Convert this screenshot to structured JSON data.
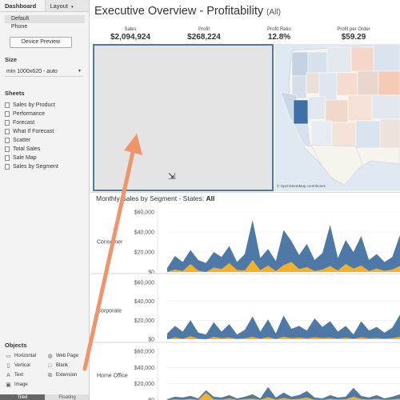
{
  "left_pane": {
    "tabs": [
      "Dashboard",
      "Layout"
    ],
    "devices": [
      "Default",
      "Phone"
    ],
    "device_preview_label": "Device Preview",
    "size_title": "Size",
    "size_value": "min 1000x620 - auto",
    "sheets_title": "Sheets",
    "sheets": [
      "Sales by Product",
      "Performance",
      "Forecast",
      "What If Forecast",
      "Scatter",
      "Total Sales",
      "Sale Map",
      "Sales by Segment"
    ],
    "objects_title": "Objects",
    "objects": [
      {
        "label": "Horizontal",
        "icon": "horizontal-icon"
      },
      {
        "label": "Web Page",
        "icon": "globe-icon"
      },
      {
        "label": "Vertical",
        "icon": "vertical-icon"
      },
      {
        "label": "Blank",
        "icon": "blank-icon"
      },
      {
        "label": "Text",
        "icon": "text-icon"
      },
      {
        "label": "Extension",
        "icon": "extension-icon"
      },
      {
        "label": "Image",
        "icon": "image-icon"
      }
    ],
    "float_tabs": [
      "Tiled",
      "Floating"
    ]
  },
  "dashboard": {
    "title": "Executive Overview - Profitability",
    "title_suffix": "(All)",
    "kpis": [
      {
        "label": "Sales",
        "value": "$2,094,924"
      },
      {
        "label": "Profit",
        "value": "$268,224"
      },
      {
        "label": "Profit Ratio",
        "value": "12.8%"
      },
      {
        "label": "Profit per Order",
        "value": "$59.29"
      }
    ],
    "map_credit": "© OpenStreetMap contributors",
    "chart_title_prefix": "Monthly Sales by Segment - States:",
    "chart_title_state": "All"
  },
  "colors": {
    "accent": "#4e79a7",
    "highlight": "#f0b12c",
    "arrow": "#f0946c"
  },
  "chart_data": {
    "type": "area",
    "title": "Monthly Sales by Segment - States: All",
    "ylim": [
      0,
      60000
    ],
    "y_ticks": [
      "$60,000",
      "$40,000",
      "$20,000",
      "$0"
    ],
    "segments": [
      {
        "name": "Consumer",
        "sales": [
          4000,
          16000,
          10000,
          22000,
          12000,
          9000,
          20000,
          15000,
          26000,
          10000,
          18000,
          52000,
          14000,
          23000,
          11000,
          42000,
          31000,
          17000,
          28000,
          12000,
          19000,
          47000,
          14000,
          32000,
          20000,
          36000,
          12000,
          18000,
          10000,
          15000,
          37000
        ],
        "highlight": [
          0,
          2500,
          1000,
          8000,
          1500,
          0,
          4500,
          3000,
          9000,
          2000,
          1500,
          12000,
          2000,
          6500,
          1000,
          7000,
          10000,
          3000,
          5000,
          1000,
          2500,
          6000,
          1500,
          8000,
          3500,
          6500,
          1000,
          3500,
          1200,
          2500,
          6000
        ]
      },
      {
        "name": "Corporate",
        "sales": [
          6000,
          14000,
          8000,
          20000,
          7000,
          5000,
          18000,
          8000,
          16000,
          5000,
          10000,
          24000,
          8000,
          21000,
          6000,
          25000,
          11000,
          14000,
          9000,
          22000,
          13000,
          19000,
          8000,
          14000,
          5000,
          19000,
          9000,
          13000,
          7000,
          12000,
          26000
        ],
        "highlight": [
          0,
          2000,
          500,
          3000,
          600,
          0,
          2500,
          1000,
          1800,
          500,
          1000,
          2500,
          700,
          2200,
          400,
          2600,
          1200,
          1800,
          900,
          2000,
          1300,
          1600,
          800,
          1700,
          500,
          2000,
          900,
          1300,
          700,
          1200,
          2600
        ]
      },
      {
        "name": "Home Office",
        "sales": [
          1000,
          4000,
          3000,
          5000,
          2000,
          12000,
          4000,
          3000,
          6000,
          2000,
          4000,
          7000,
          2000,
          16000,
          3000,
          9000,
          4000,
          6000,
          11000,
          3000,
          2000,
          6000,
          3000,
          4000,
          15000,
          5000,
          3000,
          6000,
          2000,
          4000,
          7000
        ],
        "highlight": [
          0,
          1000,
          500,
          1500,
          300,
          9000,
          1000,
          500,
          2000,
          300,
          1200,
          1800,
          400,
          3500,
          600,
          2500,
          1000,
          1400,
          3000,
          500,
          300,
          1500,
          600,
          1000,
          4000,
          1300,
          500,
          1500,
          300,
          800,
          1800
        ]
      }
    ]
  }
}
